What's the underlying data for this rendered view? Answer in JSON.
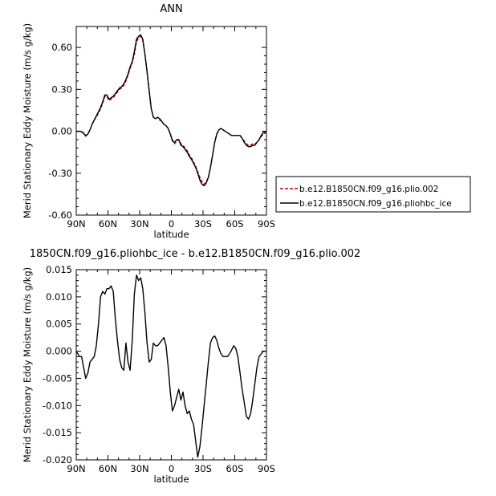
{
  "chart_data": [
    {
      "type": "line",
      "title": "ANN",
      "xlabel": "latitude",
      "ylabel": "Merid Stationary Eddy Moisture (m/s g/kg)",
      "x_ticks": [
        {
          "value": 90,
          "label": "90N"
        },
        {
          "value": 60,
          "label": "60N"
        },
        {
          "value": 30,
          "label": "30N"
        },
        {
          "value": 0,
          "label": "0"
        },
        {
          "value": -30,
          "label": "30S"
        },
        {
          "value": -60,
          "label": "60S"
        },
        {
          "value": -90,
          "label": "90S"
        }
      ],
      "xlim": [
        90,
        -90
      ],
      "ylim": [
        -0.6,
        0.75
      ],
      "y_ticks": [
        {
          "value": 0.6,
          "label": "0.60"
        },
        {
          "value": 0.3,
          "label": "0.30"
        },
        {
          "value": 0.0,
          "label": "0.00"
        },
        {
          "value": -0.3,
          "label": "-0.30"
        },
        {
          "value": -0.6,
          "label": "-0.60"
        }
      ],
      "legend_position": "right",
      "series": [
        {
          "name": "b.e12.B1850CN.f09_g16.plio.002",
          "color": "#cc0000",
          "dashed": true,
          "x": [
            90,
            86,
            83,
            81,
            79,
            77,
            75,
            73,
            71,
            69,
            67,
            65,
            63,
            61,
            59,
            57,
            55,
            53,
            51,
            49,
            47,
            45,
            43,
            41,
            39,
            37,
            35,
            33,
            31,
            29,
            27,
            25,
            23,
            21,
            19,
            17,
            15,
            13,
            11,
            9,
            7,
            5,
            3,
            1,
            -1,
            -3,
            -5,
            -7,
            -9,
            -11,
            -13,
            -15,
            -17,
            -19,
            -21,
            -23,
            -25,
            -27,
            -29,
            -31,
            -33,
            -35,
            -37,
            -39,
            -41,
            -43,
            -45,
            -47,
            -49,
            -51,
            -53,
            -55,
            -57,
            -59,
            -61,
            -63,
            -65,
            -67,
            -69,
            -71,
            -73,
            -75,
            -77,
            -79,
            -81,
            -83,
            -85,
            -87,
            -90
          ],
          "y": [
            0.0,
            0.0,
            -0.01,
            -0.03,
            -0.02,
            0.01,
            0.05,
            0.08,
            0.1,
            0.13,
            0.16,
            0.2,
            0.25,
            0.25,
            0.22,
            0.23,
            0.24,
            0.26,
            0.28,
            0.3,
            0.31,
            0.33,
            0.36,
            0.4,
            0.45,
            0.49,
            0.55,
            0.64,
            0.67,
            0.68,
            0.65,
            0.55,
            0.42,
            0.28,
            0.16,
            0.1,
            0.09,
            0.1,
            0.08,
            0.07,
            0.05,
            0.04,
            0.02,
            -0.02,
            -0.06,
            -0.09,
            -0.07,
            -0.06,
            -0.09,
            -0.1,
            -0.12,
            -0.14,
            -0.17,
            -0.19,
            -0.22,
            -0.25,
            -0.29,
            -0.33,
            -0.36,
            -0.38,
            -0.36,
            -0.33,
            -0.26,
            -0.17,
            -0.08,
            -0.02,
            0.01,
            0.02,
            0.01,
            0.0,
            -0.01,
            -0.02,
            -0.03,
            -0.03,
            -0.03,
            -0.03,
            -0.03,
            -0.05,
            -0.07,
            -0.09,
            -0.1,
            -0.1,
            -0.09,
            -0.09,
            -0.08,
            -0.06,
            -0.04,
            -0.02,
            -0.01
          ]
        },
        {
          "name": "b.e12.B1850CN.f09_g16.pliohbc_ice",
          "color": "#000000",
          "dashed": false,
          "x": [
            90,
            86,
            83,
            81,
            79,
            77,
            75,
            73,
            71,
            69,
            67,
            65,
            63,
            61,
            59,
            57,
            55,
            53,
            51,
            49,
            47,
            45,
            43,
            41,
            39,
            37,
            35,
            33,
            31,
            29,
            27,
            25,
            23,
            21,
            19,
            17,
            15,
            13,
            11,
            9,
            7,
            5,
            3,
            1,
            -1,
            -3,
            -5,
            -7,
            -9,
            -11,
            -13,
            -15,
            -17,
            -19,
            -21,
            -23,
            -25,
            -27,
            -29,
            -31,
            -33,
            -35,
            -37,
            -39,
            -41,
            -43,
            -45,
            -47,
            -49,
            -51,
            -53,
            -55,
            -57,
            -59,
            -61,
            -63,
            -65,
            -67,
            -69,
            -71,
            -73,
            -75,
            -77,
            -79,
            -81,
            -83,
            -85,
            -87,
            -90
          ],
          "y": [
            0.0,
            0.0,
            -0.015,
            -0.035,
            -0.02,
            0.01,
            0.05,
            0.08,
            0.11,
            0.14,
            0.17,
            0.21,
            0.26,
            0.26,
            0.23,
            0.24,
            0.25,
            0.27,
            0.29,
            0.31,
            0.32,
            0.34,
            0.37,
            0.41,
            0.46,
            0.5,
            0.57,
            0.66,
            0.68,
            0.69,
            0.66,
            0.55,
            0.43,
            0.29,
            0.16,
            0.1,
            0.09,
            0.1,
            0.09,
            0.07,
            0.05,
            0.04,
            0.02,
            -0.02,
            -0.07,
            -0.08,
            -0.06,
            -0.06,
            -0.1,
            -0.11,
            -0.13,
            -0.15,
            -0.18,
            -0.2,
            -0.23,
            -0.26,
            -0.3,
            -0.35,
            -0.38,
            -0.39,
            -0.37,
            -0.33,
            -0.26,
            -0.17,
            -0.08,
            -0.02,
            0.01,
            0.02,
            0.01,
            0.0,
            -0.01,
            -0.02,
            -0.03,
            -0.03,
            -0.03,
            -0.03,
            -0.03,
            -0.05,
            -0.08,
            -0.1,
            -0.11,
            -0.11,
            -0.1,
            -0.1,
            -0.08,
            -0.06,
            -0.03,
            -0.01,
            0.0
          ]
        }
      ]
    },
    {
      "type": "line",
      "title": "1850CN.f09_g16.pliohbc_ice - b.e12.B1850CN.f09_g16.plio.002",
      "xlabel": "latitude",
      "ylabel": "Merid Stationary Eddy Moisture (m/s g/kg)",
      "x_ticks": [
        {
          "value": 90,
          "label": "90N"
        },
        {
          "value": 60,
          "label": "60N"
        },
        {
          "value": 30,
          "label": "30N"
        },
        {
          "value": 0,
          "label": "0"
        },
        {
          "value": -30,
          "label": "30S"
        },
        {
          "value": -60,
          "label": "60S"
        },
        {
          "value": -90,
          "label": "90S"
        }
      ],
      "xlim": [
        90,
        -90
      ],
      "ylim": [
        -0.02,
        0.015
      ],
      "y_ticks": [
        {
          "value": 0.015,
          "label": "0.015"
        },
        {
          "value": 0.01,
          "label": "0.010"
        },
        {
          "value": 0.005,
          "label": "0.005"
        },
        {
          "value": 0.0,
          "label": "0.000"
        },
        {
          "value": -0.005,
          "label": "-0.005"
        },
        {
          "value": -0.01,
          "label": "-0.010"
        },
        {
          "value": -0.015,
          "label": "-0.015"
        },
        {
          "value": -0.02,
          "label": "-0.020"
        }
      ],
      "series": [
        {
          "color": "#000000",
          "dashed": false,
          "x": [
            90,
            87,
            85,
            83,
            81,
            79,
            77,
            75,
            73,
            71,
            69,
            67,
            65,
            63,
            61,
            59,
            57,
            55,
            53,
            51,
            49,
            47,
            45,
            43,
            41,
            39,
            37,
            35,
            33,
            31,
            29,
            27,
            25,
            23,
            21,
            19,
            17,
            15,
            13,
            11,
            9,
            7,
            5,
            3,
            1,
            -1,
            -3,
            -5,
            -7,
            -9,
            -11,
            -13,
            -15,
            -17,
            -19,
            -21,
            -23,
            -25,
            -27,
            -29,
            -31,
            -33,
            -35,
            -37,
            -39,
            -41,
            -43,
            -45,
            -47,
            -49,
            -51,
            -53,
            -55,
            -57,
            -59,
            -61,
            -63,
            -65,
            -67,
            -69,
            -71,
            -73,
            -75,
            -77,
            -79,
            -81,
            -83,
            -85,
            -87,
            -90
          ],
          "y": [
            0.0,
            -0.001,
            -0.001,
            -0.003,
            -0.005,
            -0.004,
            -0.002,
            -0.0015,
            -0.001,
            0.001,
            0.005,
            0.01,
            0.011,
            0.0105,
            0.0115,
            0.0115,
            0.012,
            0.011,
            0.006,
            0.002,
            -0.0015,
            -0.003,
            -0.0035,
            0.0015,
            -0.002,
            -0.0035,
            0.002,
            0.0105,
            0.014,
            0.013,
            0.0135,
            0.0115,
            0.007,
            0.0015,
            -0.002,
            -0.0015,
            0.0015,
            0.001,
            0.001,
            0.0015,
            0.002,
            0.0025,
            0.001,
            -0.003,
            -0.0075,
            -0.011,
            -0.01,
            -0.0085,
            -0.007,
            -0.009,
            -0.0075,
            -0.01,
            -0.0115,
            -0.011,
            -0.0125,
            -0.0135,
            -0.0165,
            -0.0195,
            -0.0175,
            -0.014,
            -0.01,
            -0.006,
            -0.002,
            0.0015,
            0.0025,
            0.0028,
            0.002,
            0.0005,
            -0.0005,
            -0.001,
            -0.001,
            -0.001,
            -0.0005,
            0.0002,
            0.001,
            0.0005,
            -0.001,
            -0.004,
            -0.007,
            -0.0095,
            -0.012,
            -0.0125,
            -0.0115,
            -0.009,
            -0.006,
            -0.003,
            -0.001,
            -0.0005,
            0.0,
            0.0
          ]
        }
      ]
    }
  ]
}
